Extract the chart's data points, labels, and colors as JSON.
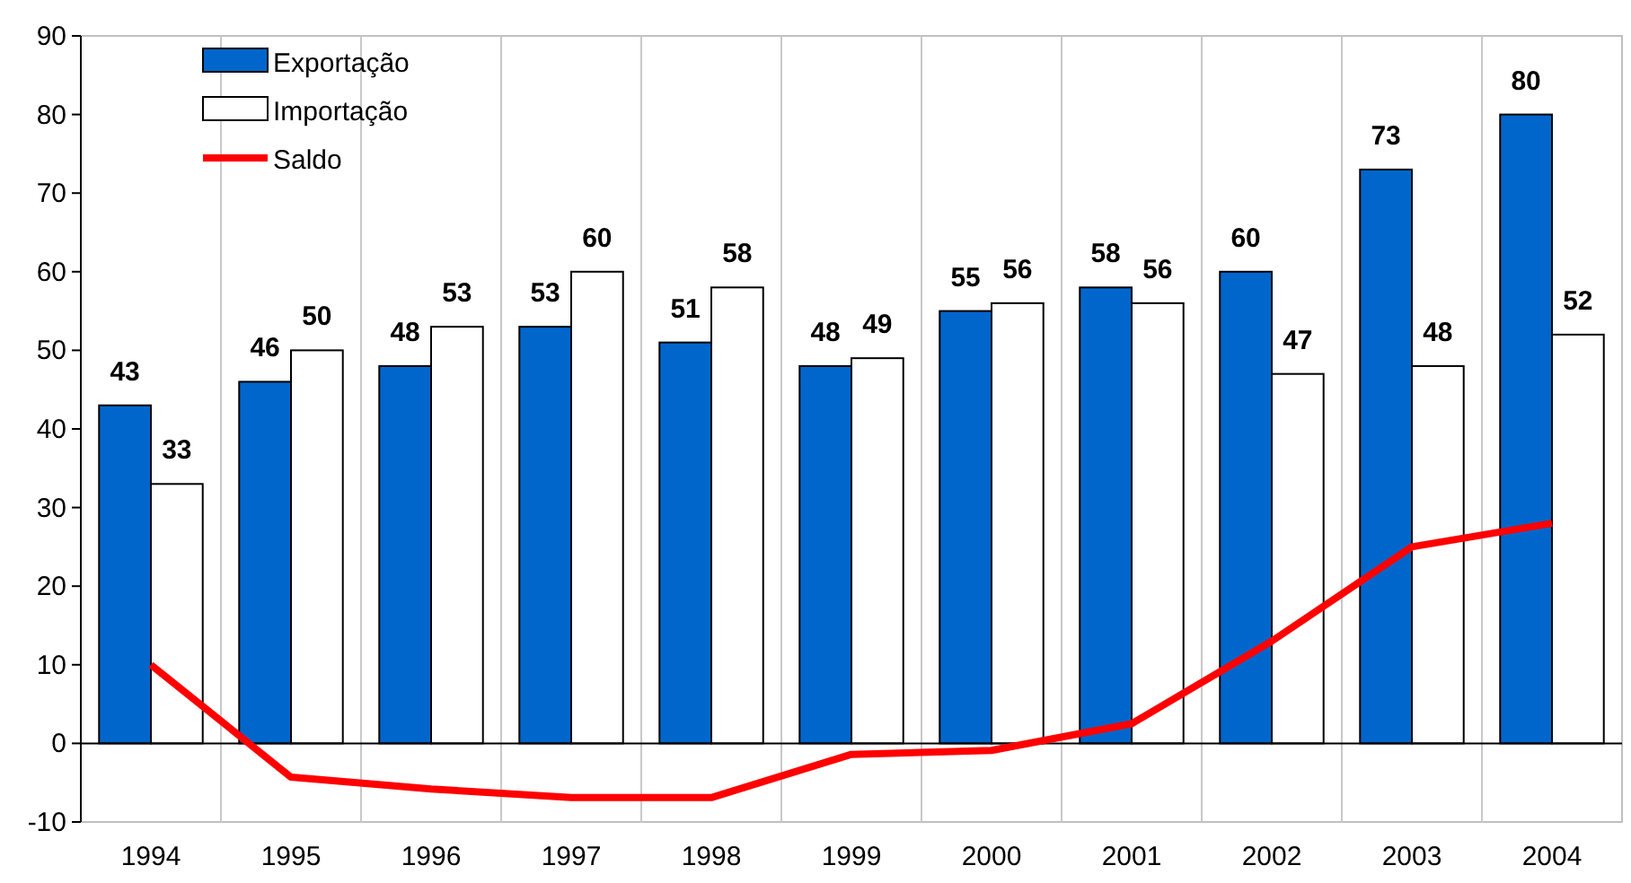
{
  "chart_data": {
    "type": "bar",
    "categories": [
      "1994",
      "1995",
      "1996",
      "1997",
      "1998",
      "1999",
      "2000",
      "2001",
      "2002",
      "2003",
      "2004"
    ],
    "series": [
      {
        "name": "Exportação",
        "color": "#0066cc",
        "values": [
          43,
          46,
          48,
          53,
          51,
          48,
          55,
          58,
          60,
          73,
          80
        ],
        "value_labels": [
          "43",
          "46",
          "48",
          "53",
          "51",
          "48",
          "55",
          "58",
          "60",
          "73",
          "80"
        ]
      },
      {
        "name": "Importação",
        "color": "#ffffff",
        "values": [
          33,
          50,
          53,
          60,
          58,
          49,
          56,
          56,
          47,
          48,
          52
        ],
        "value_labels": [
          "33",
          "50",
          "53",
          "60",
          "58",
          "49",
          "56",
          "56",
          "47",
          "48",
          "52"
        ]
      },
      {
        "name": "Saldo",
        "type": "line",
        "color": "#ff0000",
        "values": [
          10,
          -4.3,
          -5.8,
          -6.9,
          -6.9,
          -1.4,
          -0.9,
          2.5,
          13,
          25,
          28
        ]
      }
    ],
    "ylim": [
      -10,
      90
    ],
    "yticks": [
      -10,
      0,
      10,
      20,
      30,
      40,
      50,
      60,
      70,
      80,
      90
    ],
    "grid": "x",
    "legend": "top left"
  }
}
